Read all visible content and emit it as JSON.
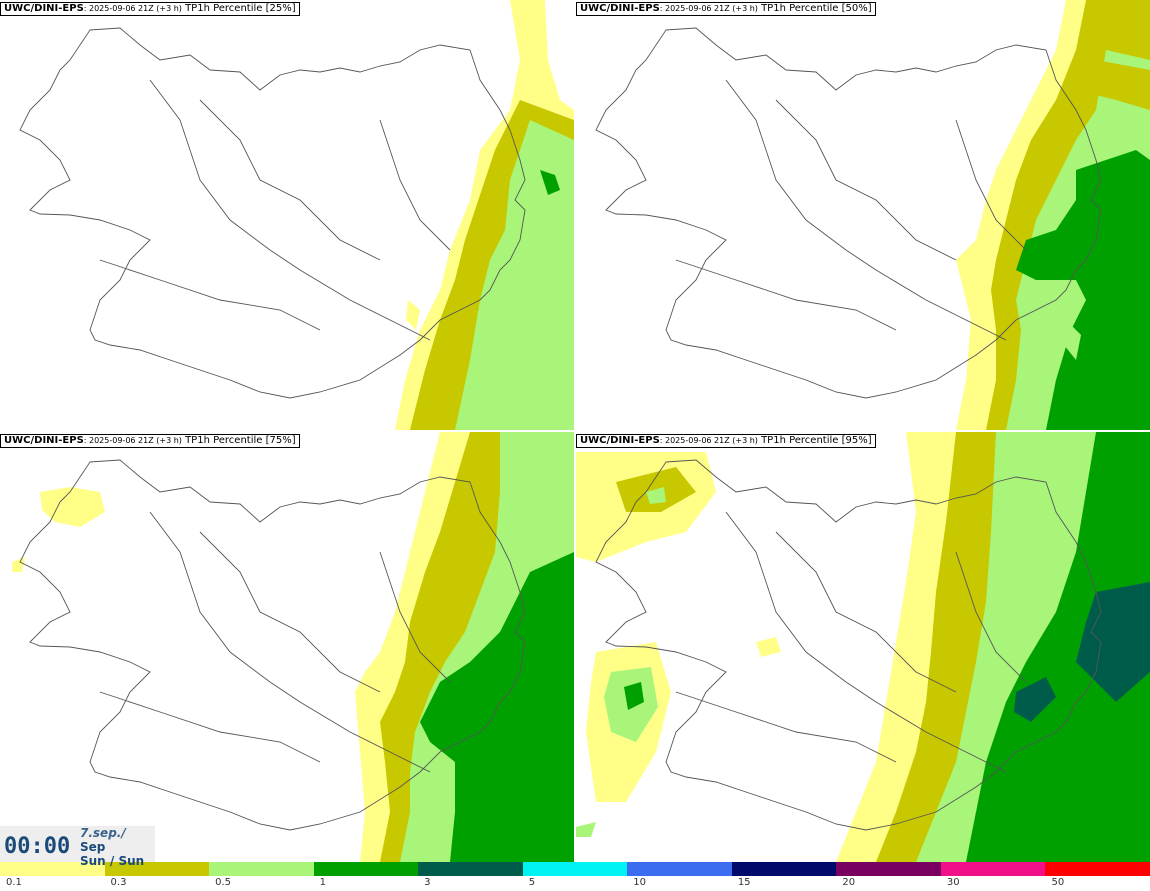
{
  "panels": [
    {
      "model": "UWC/DINI-EPS",
      "run": ": 2025-09-06 21Z (+3 h)",
      "field": " TP1h Percentile [25%]"
    },
    {
      "model": "UWC/DINI-EPS",
      "run": ": 2025-09-06 21Z (+3 h)",
      "field": " TP1h Percentile [50%]"
    },
    {
      "model": "UWC/DINI-EPS",
      "run": ": 2025-09-06 21Z (+3 h)",
      "field": " TP1h Percentile [75%]"
    },
    {
      "model": "UWC/DINI-EPS",
      "run": ": 2025-09-06 21Z (+3 h)",
      "field": " TP1h Percentile [95%]"
    }
  ],
  "clock": {
    "time": "00:00",
    "date_line1": "7.sep./",
    "date_line2": "Sep",
    "date_line3": "Sun / Sun"
  },
  "legend": {
    "ticks": [
      "0.1",
      "0.3",
      "0.5",
      "1",
      "3",
      "5",
      "10",
      "15",
      "20",
      "30",
      "50"
    ],
    "colors": [
      "#ffff88",
      "#c8c800",
      "#a8f57a",
      "#00a000",
      "#005c4a",
      "#00f2f2",
      "#3c6cf0",
      "#000a6a",
      "#780060",
      "#f2108a",
      "#ff0000"
    ]
  }
}
